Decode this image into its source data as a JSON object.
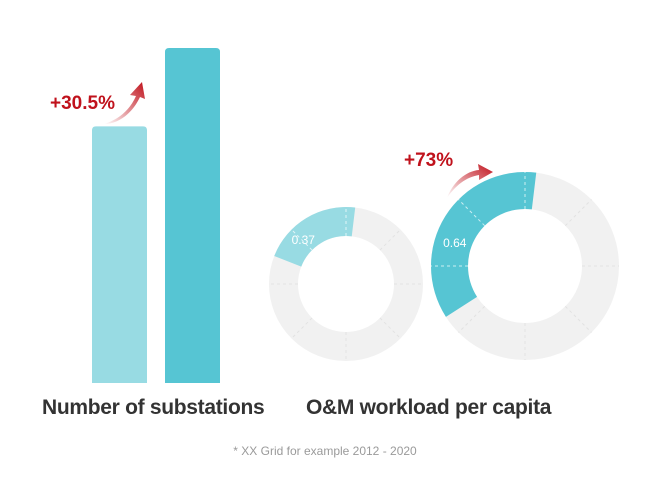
{
  "chart_data": [
    {
      "type": "bar",
      "xlabel": "Number of substations",
      "categories": [
        "",
        ""
      ],
      "values": [
        0.766,
        1.0
      ],
      "colors": [
        "#98dbe3",
        "#56c5d3"
      ],
      "growth_label": "+30.5%"
    },
    {
      "type": "pie",
      "xlabel": "O&M workload per capita",
      "series": [
        {
          "value": 0.37,
          "label": "0.37",
          "share": 0.21,
          "color": "#98dbe3"
        },
        {
          "value": 0.64,
          "label": "0.64",
          "share": 0.36,
          "color": "#56c5d3"
        }
      ],
      "remainder_color": "#f1f1f1",
      "growth_label": "+73%"
    }
  ],
  "footnote": "* XX Grid for example 2012 - 2020"
}
